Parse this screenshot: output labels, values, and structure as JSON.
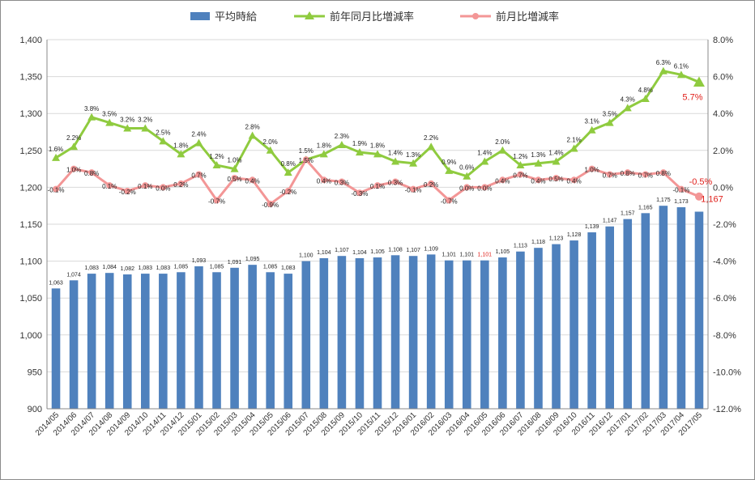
{
  "legend": {
    "wage_label": "平均時給",
    "yoy_label": "前年同月比増減率",
    "mom_label": "前月比増減率"
  },
  "colors": {
    "bars": "#4f81bd",
    "yoy": "#8fcb3f",
    "mom": "#f39696",
    "gridline": "#d9d9d9",
    "axis": "#888888",
    "highlight": "#e0201b"
  },
  "chart_data": {
    "type": "bar",
    "categories": [
      "2014/05",
      "2014/06",
      "2014/07",
      "2014/08",
      "2014/09",
      "2014/10",
      "2014/11",
      "2014/12",
      "2015/01",
      "2015/02",
      "2015/03",
      "2015/04",
      "2015/05",
      "2015/06",
      "2015/07",
      "2015/08",
      "2015/09",
      "2015/10",
      "2015/11",
      "2015/12",
      "2016/01",
      "2016/02",
      "2016/03",
      "2016/04",
      "2016/05",
      "2016/06",
      "2016/07",
      "2016/08",
      "2016/09",
      "2016/10",
      "2016/11",
      "2016/12",
      "2017/01",
      "2017/02",
      "2017/03",
      "2017/04",
      "2017/05"
    ],
    "series": [
      {
        "name": "平均時給",
        "type": "bar",
        "axis": "left",
        "values": [
          1063,
          1074,
          1083,
          1084,
          1082,
          1083,
          1083,
          1085,
          1093,
          1085,
          1091,
          1095,
          1085,
          1083,
          1100,
          1104,
          1107,
          1104,
          1105,
          1108,
          1107,
          1109,
          1101,
          1101,
          1101,
          1105,
          1113,
          1118,
          1123,
          1128,
          1139,
          1147,
          1157,
          1165,
          1175,
          1173,
          1167
        ],
        "labels": [
          "1,063",
          "1,074",
          "1,083",
          "1,084",
          "1,082",
          "1,083",
          "1,083",
          "1,085",
          "1,093",
          "1,085",
          "1,091",
          "1,095",
          "1,085",
          "1,083",
          "1,100",
          "1,104",
          "1,107",
          "1,104",
          "1,105",
          "1,108",
          "1,107",
          "1,109",
          "1,101",
          "1,101",
          "1,101",
          "1,105",
          "1,113",
          "1,118",
          "1,123",
          "1,128",
          "1,139",
          "1,147",
          "1,157",
          "1,165",
          "1,175",
          "1,173",
          "1,167"
        ]
      },
      {
        "name": "前年同月比増減率",
        "type": "line",
        "axis": "right",
        "values": [
          1.6,
          2.2,
          3.8,
          3.5,
          3.2,
          3.2,
          2.5,
          1.8,
          2.4,
          1.2,
          1.0,
          2.8,
          2.0,
          0.8,
          1.5,
          1.8,
          2.3,
          1.9,
          1.8,
          1.4,
          1.3,
          2.2,
          0.9,
          0.6,
          1.4,
          2.0,
          1.2,
          1.3,
          1.4,
          2.1,
          3.1,
          3.5,
          4.3,
          4.8,
          6.3,
          6.1,
          5.7
        ],
        "labels": [
          "1.6%",
          "2.2%",
          "3.8%",
          "3.5%",
          "3.2%",
          "3.2%",
          "2.5%",
          "1.8%",
          "2.4%",
          "1.2%",
          "1.0%",
          "2.8%",
          "2.0%",
          "0.8%",
          "1.5%",
          "1.8%",
          "2.3%",
          "1.9%",
          "1.8%",
          "1.4%",
          "1.3%",
          "2.2%",
          "0.9%",
          "0.6%",
          "1.4%",
          "2.0%",
          "1.2%",
          "1.3%",
          "1.4%",
          "2.1%",
          "3.1%",
          "3.5%",
          "4.3%",
          "4.8%",
          "6.3%",
          "6.1%",
          "5.7%"
        ]
      },
      {
        "name": "前月比増減率",
        "type": "line",
        "axis": "right",
        "values": [
          -0.1,
          1.0,
          0.8,
          0.1,
          -0.2,
          0.1,
          0.0,
          0.2,
          0.7,
          -0.7,
          0.5,
          0.4,
          -0.9,
          -0.2,
          1.5,
          0.4,
          0.3,
          -0.3,
          0.1,
          0.3,
          -0.1,
          0.2,
          -0.7,
          0.0,
          0.0,
          0.4,
          0.7,
          0.4,
          0.5,
          0.4,
          1.0,
          0.7,
          0.8,
          0.7,
          0.8,
          -0.1,
          -0.5
        ],
        "labels": [
          "-0.1%",
          "1.0%",
          "0.8%",
          "0.1%",
          "-0.2%",
          "0.1%",
          "0.0%",
          "0.2%",
          "0.7%",
          "-0.7%",
          "0.5%",
          "0.4%",
          "-0.9%",
          "-0.2%",
          "1.5%",
          "0.4%",
          "0.3%",
          "-0.3%",
          "0.1%",
          "0.3%",
          "-0.1%",
          "0.2%",
          "-0.7%",
          "0.0%",
          "0.0%",
          "0.4%",
          "0.7%",
          "0.4%",
          "0.5%",
          "0.4%",
          "1.0%",
          "0.7%",
          "0.8%",
          "0.7%",
          "0.8%",
          "-0.1%",
          "-0.5%"
        ]
      }
    ],
    "y_left": {
      "range": [
        900,
        1400
      ],
      "ticks": [
        900,
        950,
        1000,
        1050,
        1100,
        1150,
        1200,
        1250,
        1300,
        1350,
        1400
      ],
      "tick_labels": [
        "900",
        "950",
        "1,000",
        "1,050",
        "1,100",
        "1,150",
        "1,200",
        "1,250",
        "1,300",
        "1,350",
        "1,400"
      ]
    },
    "y_right": {
      "range": [
        -12,
        8
      ],
      "ticks": [
        -12,
        -10,
        -8,
        -6,
        -4,
        -2,
        0,
        2,
        4,
        6,
        8
      ],
      "tick_labels": [
        "-12.0%",
        "-10.0%",
        "-8.0%",
        "-6.0%",
        "-4.0%",
        "-2.0%",
        "0.0%",
        "2.0%",
        "4.0%",
        "6.0%",
        "8.0%"
      ]
    },
    "grid": true,
    "legend_position": "top",
    "highlighted": {
      "bar_index": 24,
      "last_point_emphasis": true
    }
  }
}
